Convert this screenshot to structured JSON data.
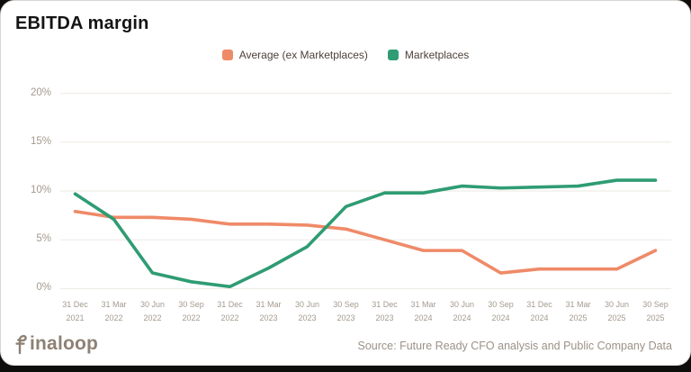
{
  "title": "EBITDA margin",
  "chart_data": {
    "type": "line",
    "title": "EBITDA margin",
    "unit": "%",
    "grid": true,
    "legend_position": "top-center",
    "ylim": [
      0,
      20
    ],
    "yticks": [
      0,
      5,
      10,
      15,
      20
    ],
    "ytick_labels": [
      "0%",
      "5%",
      "10%",
      "15%",
      "20%"
    ],
    "categories": [
      "31 Dec 2021",
      "31 Mar 2022",
      "30 Jun 2022",
      "30 Sep 2022",
      "31 Dec 2022",
      "31 Mar 2023",
      "30 Jun 2023",
      "30 Sep 2023",
      "31 Dec 2023",
      "31 Mar 2024",
      "30 Jun 2024",
      "30 Sep 2024",
      "31 Dec 2024",
      "31 Mar 2025",
      "30 Jun 2025",
      "30 Sep 2025"
    ],
    "series": [
      {
        "name": "Average (ex Marketplaces)",
        "color": "#EF8A68",
        "values": [
          7.9,
          7.3,
          7.3,
          7.1,
          6.6,
          6.6,
          6.5,
          6.1,
          5.0,
          3.9,
          3.9,
          1.6,
          2.0,
          2.0,
          2.0,
          3.9
        ]
      },
      {
        "name": "Marketplaces",
        "color": "#2F9C73",
        "values": [
          9.7,
          7.1,
          1.6,
          0.7,
          0.2,
          2.1,
          4.3,
          8.4,
          9.8,
          9.8,
          10.5,
          10.3,
          10.4,
          10.5,
          11.1,
          11.1
        ]
      }
    ],
    "colors": {
      "average_ex_marketplaces": "#EF8A68",
      "marketplaces": "#2F9C73",
      "gridline": "#EDE8E2"
    }
  },
  "footer": {
    "logo_text": "finaloop",
    "source_text": "Source: Future Ready CFO analysis and Public Company Data"
  }
}
